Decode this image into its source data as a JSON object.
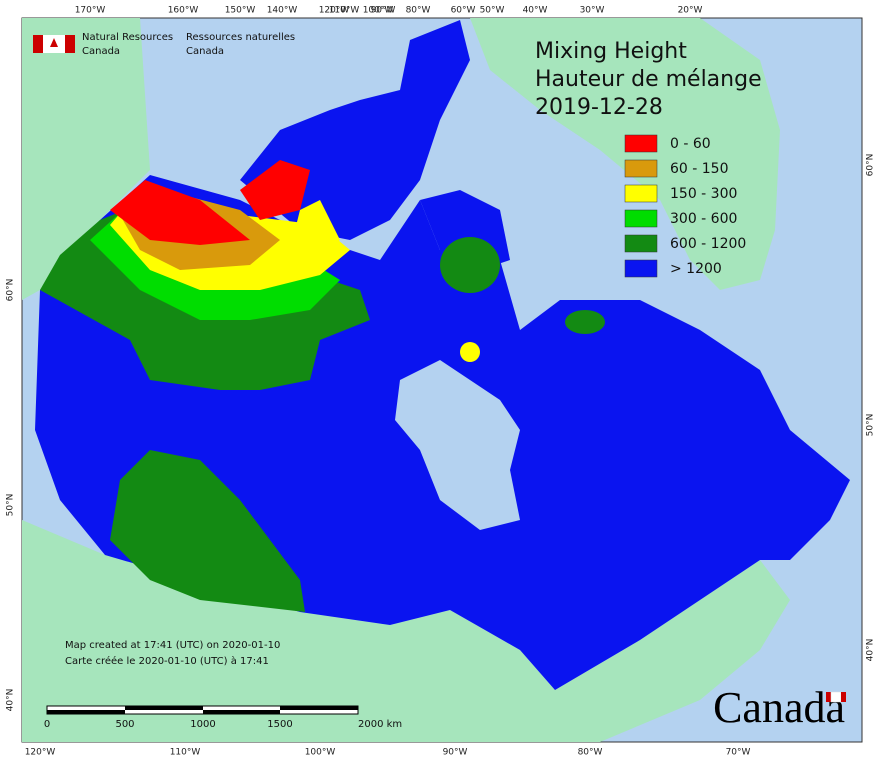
{
  "title": [
    "Mixing Height",
    "Hauteur de mélange",
    "2019-12-28"
  ],
  "agency": {
    "en": [
      "Natural Resources",
      "Canada"
    ],
    "fr": [
      "Ressources naturelles",
      "Canada"
    ]
  },
  "legend": [
    {
      "label": "0 - 60",
      "color": "#ff0000"
    },
    {
      "label": "60 - 150",
      "color": "#d99a0c"
    },
    {
      "label": "150 - 300",
      "color": "#ffff00"
    },
    {
      "label": "300 - 600",
      "color": "#00dd00"
    },
    {
      "label": "600 - 1200",
      "color": "#138a13"
    },
    {
      "label": "> 1200",
      "color": "#0a14f0"
    }
  ],
  "graticule": {
    "top": [
      "170°W",
      "160°W",
      "150°W",
      "140°W",
      "120°W",
      "110°W",
      "100°W",
      "90°W",
      "80°W",
      "60°W",
      "50°W",
      "40°W",
      "30°W",
      "20°W"
    ],
    "bottom": [
      "120°W",
      "110°W",
      "100°W",
      "90°W",
      "80°W",
      "70°W"
    ],
    "left": [
      "60°N",
      "50°N",
      "40°N"
    ],
    "right": [
      "60°N",
      "50°N",
      "40°N"
    ]
  },
  "credits": [
    "Map created at 17:41 (UTC) on 2020-01-10",
    "Carte créée le 2020-01-10 (UTC) à 17:41"
  ],
  "scale": [
    "0",
    "500",
    "1000",
    "1500",
    "2000 km"
  ],
  "wordmark": "Canada"
}
